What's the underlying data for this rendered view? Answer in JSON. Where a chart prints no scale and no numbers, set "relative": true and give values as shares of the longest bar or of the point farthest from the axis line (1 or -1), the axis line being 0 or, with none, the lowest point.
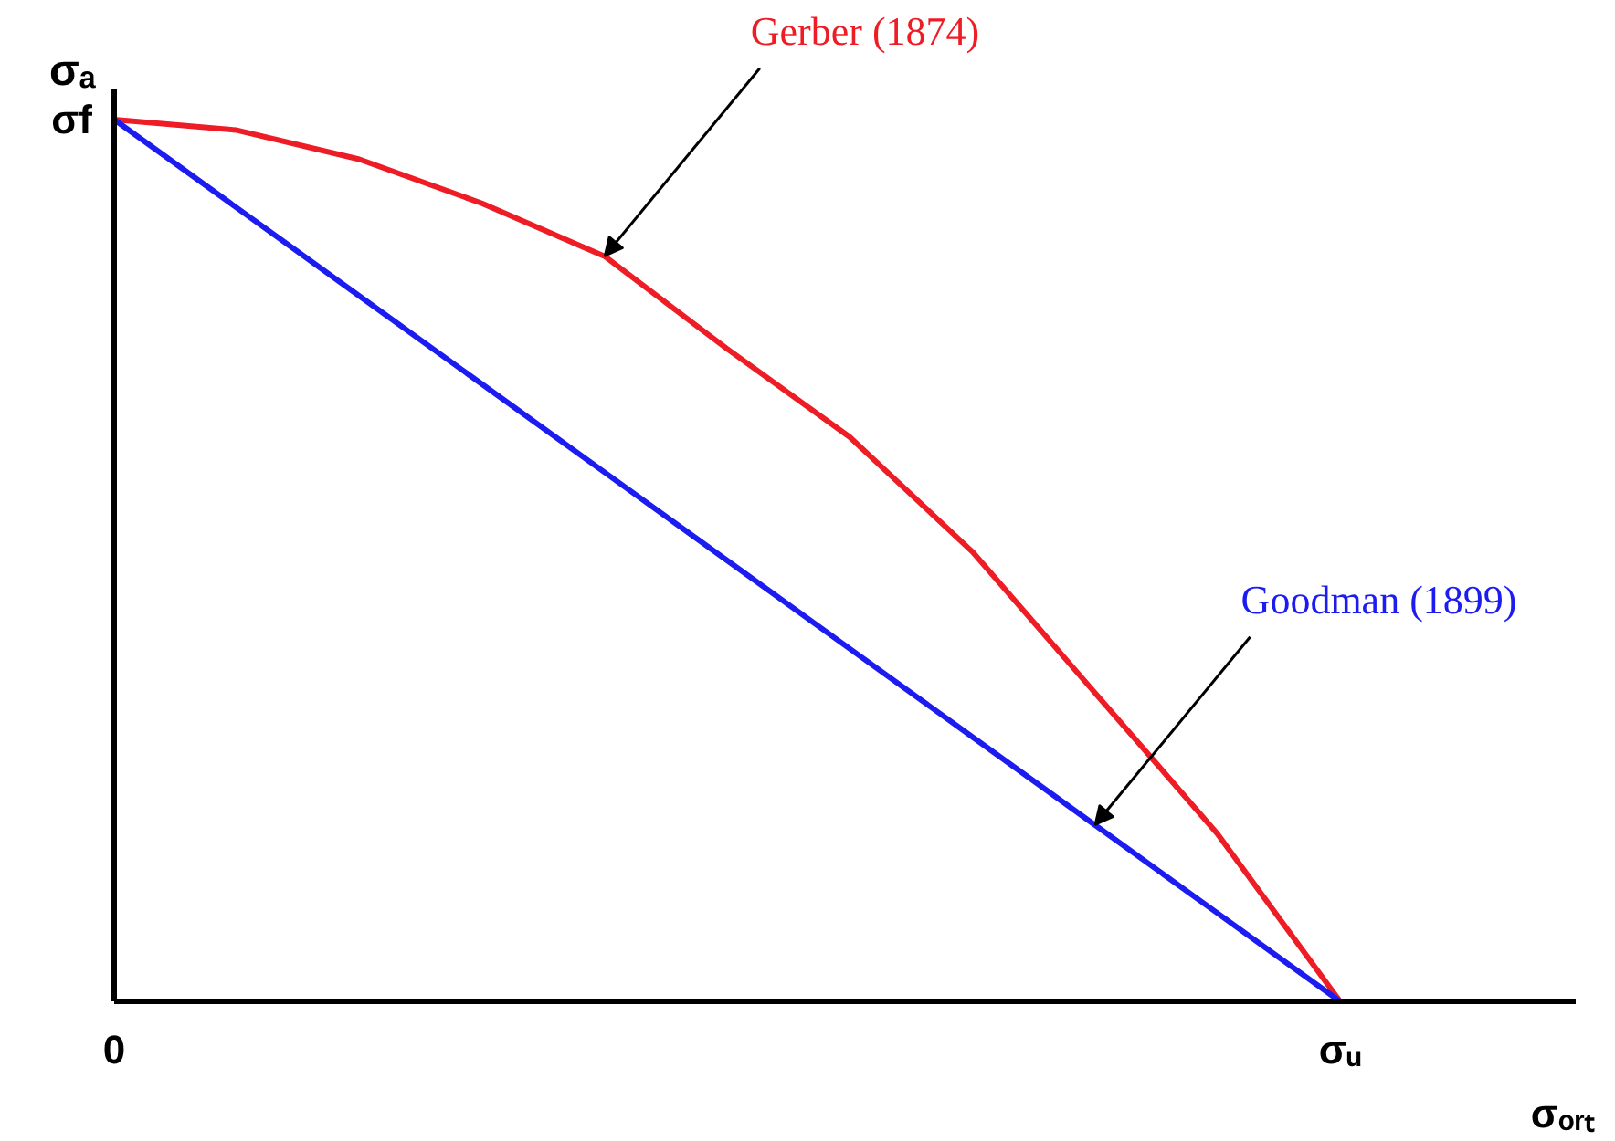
{
  "chart_data": {
    "type": "line",
    "relative": true,
    "xlabel": "σₒᵣₜ",
    "ylabel": "σₐ",
    "categories": [
      "0",
      null,
      null,
      null,
      null,
      null,
      null,
      null,
      null,
      null,
      "σᵤ"
    ],
    "marker": "none",
    "line_style": "solid",
    "series": [
      {
        "name": "Gerber (1874)",
        "color": "#ee1c25",
        "values": [
          1,
          0.988,
          0.955,
          0.905,
          0.845,
          0.74,
          0.64,
          0.51,
          0.35,
          0.19,
          0
        ]
      },
      {
        "name": "Goodman (1899)",
        "color": "#1c1cf0",
        "values": [
          1,
          0.9,
          0.8,
          0.7,
          0.6,
          0.5,
          0.4,
          0.3,
          0.2,
          0.1,
          0
        ]
      }
    ],
    "annotations": [
      "σf"
    ]
  }
}
